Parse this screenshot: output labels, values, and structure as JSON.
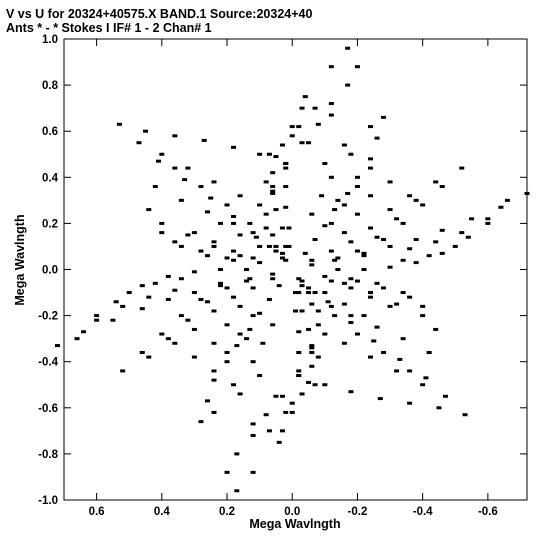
{
  "header": {
    "line1": "V vs U for 20324+40575.X BAND.1   Source:20324+40",
    "line2": "Ants * - *    Stokes I  IF# 1 - 2  Chan# 1"
  },
  "chart_data": {
    "type": "scatter",
    "xlabel": "Mega Wavlngth",
    "ylabel": "Mega Wavlngth",
    "xlim": [
      0.7,
      -0.72
    ],
    "ylim": [
      -1.0,
      1.0
    ],
    "x_axis_reversed": true,
    "grid": false,
    "x_ticks": [
      0.6,
      0.4,
      0.2,
      0.0,
      -0.2,
      -0.4,
      -0.6
    ],
    "x_tick_labels": [
      "0.6",
      "0.4",
      "0.2",
      "0.0",
      "-0.2",
      "-0.4",
      "-0.6"
    ],
    "y_ticks": [
      1.0,
      0.8,
      0.6,
      0.4,
      0.2,
      0.0,
      -0.2,
      -0.4,
      -0.6,
      -0.8,
      -1.0
    ],
    "y_tick_labels": [
      "1.0",
      "0.8",
      "0.6",
      "0.4",
      "0.2",
      "0.0",
      "-0.2",
      "-0.4",
      "-0.6",
      "-0.8",
      "-1.0"
    ],
    "point_color": "#000000",
    "series": [
      {
        "values": [
          [
            -0.17,
            0.96
          ],
          [
            -0.12,
            0.88
          ],
          [
            -0.04,
            0.75
          ],
          [
            0.0,
            0.62
          ],
          [
            0.05,
            0.49
          ],
          [
            0.08,
            0.38
          ],
          [
            0.1,
            0.28
          ],
          [
            0.08,
            0.18
          ],
          [
            0.05,
            0.1
          ],
          [
            0.02,
            0.04
          ],
          [
            0.17,
            -0.96
          ],
          [
            0.12,
            -0.88
          ],
          [
            0.04,
            -0.75
          ],
          [
            0.0,
            -0.62
          ],
          [
            -0.05,
            -0.49
          ],
          [
            -0.08,
            -0.38
          ],
          [
            -0.1,
            -0.28
          ],
          [
            -0.08,
            -0.18
          ],
          [
            -0.05,
            -0.1
          ],
          [
            -0.02,
            -0.04
          ],
          [
            -0.2,
            0.88
          ],
          [
            -0.17,
            0.8
          ],
          [
            -0.12,
            0.67
          ],
          [
            -0.05,
            0.55
          ],
          [
            0.02,
            0.44
          ],
          [
            0.06,
            0.33
          ],
          [
            0.08,
            0.24
          ],
          [
            0.06,
            0.15
          ],
          [
            0.03,
            0.07
          ],
          [
            0.2,
            -0.88
          ],
          [
            0.17,
            -0.8
          ],
          [
            0.12,
            -0.67
          ],
          [
            0.05,
            -0.55
          ],
          [
            -0.02,
            -0.44
          ],
          [
            -0.06,
            -0.33
          ],
          [
            -0.08,
            -0.24
          ],
          [
            -0.06,
            -0.15
          ],
          [
            -0.03,
            -0.07
          ],
          [
            -0.12,
            0.72
          ],
          [
            -0.08,
            0.63
          ],
          [
            -0.03,
            0.55
          ],
          [
            0.02,
            0.46
          ],
          [
            0.06,
            0.36
          ],
          [
            -0.07,
            0.7
          ],
          [
            -0.02,
            0.62
          ],
          [
            0.03,
            0.54
          ],
          [
            0.12,
            -0.72
          ],
          [
            0.08,
            -0.63
          ],
          [
            0.03,
            -0.55
          ],
          [
            -0.02,
            -0.46
          ],
          [
            -0.06,
            -0.36
          ],
          [
            0.07,
            -0.7
          ],
          [
            0.02,
            -0.62
          ],
          [
            -0.03,
            -0.54
          ],
          [
            0.07,
            0.5
          ],
          [
            0.06,
            0.42
          ],
          [
            0.06,
            0.34
          ],
          [
            0.05,
            0.26
          ],
          [
            0.03,
            0.18
          ],
          [
            0.02,
            0.1
          ],
          [
            -0.07,
            -0.5
          ],
          [
            -0.06,
            -0.42
          ],
          [
            -0.06,
            -0.34
          ],
          [
            -0.05,
            -0.26
          ],
          [
            -0.03,
            -0.18
          ],
          [
            -0.02,
            -0.1
          ],
          [
            -0.03,
            0.7
          ],
          [
            0.0,
            0.58
          ],
          [
            0.02,
            0.46
          ],
          [
            0.02,
            0.36
          ],
          [
            0.02,
            0.27
          ],
          [
            0.01,
            0.18
          ],
          [
            0.01,
            0.1
          ],
          [
            0.03,
            -0.7
          ],
          [
            0.0,
            -0.58
          ],
          [
            -0.02,
            -0.46
          ],
          [
            -0.02,
            -0.36
          ],
          [
            -0.02,
            -0.27
          ],
          [
            -0.01,
            -0.18
          ],
          [
            -0.01,
            -0.1
          ],
          [
            -0.28,
            0.66
          ],
          [
            -0.26,
            0.57
          ],
          [
            -0.24,
            0.48
          ],
          [
            -0.2,
            0.4
          ],
          [
            -0.17,
            0.33
          ],
          [
            -0.13,
            0.26
          ],
          [
            -0.1,
            0.19
          ],
          [
            -0.07,
            0.13
          ],
          [
            -0.04,
            0.07
          ],
          [
            0.28,
            -0.66
          ],
          [
            0.26,
            -0.57
          ],
          [
            0.24,
            -0.48
          ],
          [
            0.2,
            -0.4
          ],
          [
            0.17,
            -0.33
          ],
          [
            0.13,
            -0.26
          ],
          [
            0.1,
            -0.19
          ],
          [
            0.07,
            -0.13
          ],
          [
            0.04,
            -0.07
          ],
          [
            -0.24,
            0.62
          ],
          [
            -0.16,
            0.54
          ],
          [
            -0.1,
            0.46
          ],
          [
            -0.18,
            0.5
          ],
          [
            -0.12,
            0.4
          ],
          [
            -0.14,
            0.3
          ],
          [
            -0.09,
            0.32
          ],
          [
            -0.06,
            0.24
          ],
          [
            0.24,
            -0.62
          ],
          [
            0.16,
            -0.54
          ],
          [
            0.1,
            -0.46
          ],
          [
            0.18,
            -0.5
          ],
          [
            0.12,
            -0.4
          ],
          [
            0.14,
            -0.3
          ],
          [
            0.09,
            -0.32
          ],
          [
            0.06,
            -0.24
          ],
          [
            0.53,
            0.63
          ],
          [
            0.45,
            0.6
          ],
          [
            0.36,
            0.58
          ],
          [
            0.27,
            0.56
          ],
          [
            0.18,
            0.53
          ],
          [
            0.1,
            0.5
          ],
          [
            -0.53,
            -0.63
          ],
          [
            -0.45,
            -0.6
          ],
          [
            -0.36,
            -0.58
          ],
          [
            -0.27,
            -0.56
          ],
          [
            -0.18,
            -0.53
          ],
          [
            -0.1,
            -0.5
          ],
          [
            0.47,
            0.55
          ],
          [
            0.41,
            0.47
          ],
          [
            0.33,
            0.39
          ],
          [
            0.25,
            0.31
          ],
          [
            0.18,
            0.23
          ],
          [
            0.12,
            0.16
          ],
          [
            0.07,
            0.1
          ],
          [
            0.03,
            0.05
          ],
          [
            -0.47,
            -0.55
          ],
          [
            -0.41,
            -0.47
          ],
          [
            -0.33,
            -0.39
          ],
          [
            -0.25,
            -0.31
          ],
          [
            -0.18,
            -0.23
          ],
          [
            -0.12,
            -0.16
          ],
          [
            -0.07,
            -0.1
          ],
          [
            -0.03,
            -0.05
          ],
          [
            0.4,
            0.5
          ],
          [
            0.32,
            0.44
          ],
          [
            0.24,
            0.38
          ],
          [
            0.16,
            0.32
          ],
          [
            0.36,
            0.44
          ],
          [
            0.28,
            0.36
          ],
          [
            0.2,
            0.28
          ],
          [
            0.13,
            0.2
          ],
          [
            -0.4,
            -0.5
          ],
          [
            -0.32,
            -0.44
          ],
          [
            -0.24,
            -0.38
          ],
          [
            -0.16,
            -0.32
          ],
          [
            -0.36,
            -0.44
          ],
          [
            -0.28,
            -0.36
          ],
          [
            -0.2,
            -0.28
          ],
          [
            -0.13,
            -0.2
          ],
          [
            0.42,
            0.36
          ],
          [
            0.34,
            0.3
          ],
          [
            0.26,
            0.25
          ],
          [
            0.18,
            0.2
          ],
          [
            0.11,
            0.14
          ],
          [
            0.05,
            0.08
          ],
          [
            -0.42,
            -0.36
          ],
          [
            -0.34,
            -0.3
          ],
          [
            -0.26,
            -0.25
          ],
          [
            -0.18,
            -0.2
          ],
          [
            -0.11,
            -0.14
          ],
          [
            -0.05,
            -0.08
          ],
          [
            0.44,
            0.26
          ],
          [
            0.4,
            0.16
          ],
          [
            0.34,
            0.1
          ],
          [
            0.26,
            0.06
          ],
          [
            0.18,
            0.04
          ],
          [
            0.1,
            0.03
          ],
          [
            -0.44,
            -0.26
          ],
          [
            -0.4,
            -0.16
          ],
          [
            -0.34,
            -0.1
          ],
          [
            -0.26,
            -0.06
          ],
          [
            -0.18,
            -0.04
          ],
          [
            -0.1,
            -0.03
          ],
          [
            0.4,
            0.2
          ],
          [
            0.32,
            0.15
          ],
          [
            0.24,
            0.1
          ],
          [
            0.16,
            0.06
          ],
          [
            0.36,
            0.12
          ],
          [
            0.28,
            0.08
          ],
          [
            0.2,
            0.05
          ],
          [
            -0.4,
            -0.2
          ],
          [
            -0.32,
            -0.15
          ],
          [
            -0.24,
            -0.1
          ],
          [
            -0.16,
            -0.06
          ],
          [
            -0.36,
            -0.12
          ],
          [
            -0.28,
            -0.08
          ],
          [
            -0.2,
            -0.05
          ],
          [
            -0.72,
            0.33
          ],
          [
            -0.64,
            0.27
          ],
          [
            -0.55,
            0.22
          ],
          [
            -0.46,
            0.17
          ],
          [
            -0.38,
            0.13
          ],
          [
            -0.3,
            0.1
          ],
          [
            -0.22,
            0.07
          ],
          [
            -0.14,
            0.05
          ],
          [
            -0.06,
            0.02
          ],
          [
            0.72,
            -0.33
          ],
          [
            0.64,
            -0.27
          ],
          [
            0.55,
            -0.22
          ],
          [
            0.46,
            -0.17
          ],
          [
            0.38,
            -0.13
          ],
          [
            0.3,
            -0.1
          ],
          [
            0.22,
            -0.07
          ],
          [
            0.14,
            -0.05
          ],
          [
            0.06,
            -0.02
          ],
          [
            -0.66,
            0.3
          ],
          [
            -0.6,
            0.22
          ],
          [
            -0.54,
            0.14
          ],
          [
            -0.46,
            0.07
          ],
          [
            -0.38,
            0.03
          ],
          [
            -0.3,
            0.01
          ],
          [
            -0.22,
            0.0
          ],
          [
            -0.14,
            0.0
          ],
          [
            0.66,
            -0.3
          ],
          [
            0.6,
            -0.22
          ],
          [
            0.54,
            -0.14
          ],
          [
            0.46,
            -0.07
          ],
          [
            0.38,
            -0.03
          ],
          [
            0.3,
            -0.01
          ],
          [
            0.22,
            0.0
          ],
          [
            0.14,
            0.0
          ],
          [
            -0.6,
            0.2
          ],
          [
            -0.52,
            0.16
          ],
          [
            -0.44,
            0.12
          ],
          [
            -0.36,
            0.09
          ],
          [
            -0.5,
            0.1
          ],
          [
            -0.42,
            0.06
          ],
          [
            -0.34,
            0.04
          ],
          [
            0.6,
            -0.2
          ],
          [
            0.52,
            -0.16
          ],
          [
            0.44,
            -0.12
          ],
          [
            0.36,
            -0.09
          ],
          [
            0.5,
            -0.1
          ],
          [
            0.42,
            -0.06
          ],
          [
            0.34,
            -0.04
          ],
          [
            -0.44,
            0.38
          ],
          [
            -0.38,
            0.3
          ],
          [
            -0.32,
            0.22
          ],
          [
            -0.26,
            0.14
          ],
          [
            -0.2,
            0.08
          ],
          [
            -0.13,
            0.04
          ],
          [
            0.44,
            -0.38
          ],
          [
            0.38,
            -0.3
          ],
          [
            0.32,
            -0.22
          ],
          [
            0.26,
            -0.14
          ],
          [
            0.2,
            -0.08
          ],
          [
            0.13,
            -0.04
          ],
          [
            -0.52,
            0.44
          ],
          [
            -0.46,
            0.36
          ],
          [
            -0.4,
            0.28
          ],
          [
            -0.34,
            0.2
          ],
          [
            -0.28,
            0.13
          ],
          [
            -0.22,
            0.06
          ],
          [
            0.52,
            -0.44
          ],
          [
            0.46,
            -0.36
          ],
          [
            0.4,
            -0.28
          ],
          [
            0.34,
            -0.2
          ],
          [
            0.28,
            -0.13
          ],
          [
            0.22,
            -0.06
          ],
          [
            -0.36,
            0.32
          ],
          [
            -0.3,
            0.26
          ],
          [
            -0.24,
            0.18
          ],
          [
            -0.18,
            0.12
          ],
          [
            -0.12,
            0.08
          ],
          [
            -0.06,
            0.04
          ],
          [
            0.36,
            -0.32
          ],
          [
            0.3,
            -0.26
          ],
          [
            0.24,
            -0.18
          ],
          [
            0.18,
            -0.12
          ],
          [
            0.12,
            -0.08
          ],
          [
            0.06,
            -0.04
          ],
          [
            0.3,
            0.16
          ],
          [
            0.24,
            0.12
          ],
          [
            0.18,
            0.08
          ],
          [
            0.12,
            0.05
          ],
          [
            0.22,
            0.2
          ],
          [
            0.16,
            0.15
          ],
          [
            0.1,
            0.1
          ],
          [
            -0.3,
            -0.16
          ],
          [
            -0.24,
            -0.12
          ],
          [
            -0.18,
            -0.08
          ],
          [
            -0.12,
            -0.05
          ],
          [
            -0.22,
            -0.2
          ],
          [
            -0.16,
            -0.15
          ],
          [
            -0.1,
            -0.1
          ],
          [
            -0.3,
            0.38
          ],
          [
            -0.24,
            0.32
          ],
          [
            -0.2,
            0.24
          ],
          [
            -0.16,
            0.16
          ],
          [
            -0.24,
            0.44
          ],
          [
            -0.2,
            0.36
          ],
          [
            -0.16,
            0.28
          ],
          [
            -0.12,
            0.2
          ],
          [
            0.3,
            -0.38
          ],
          [
            0.24,
            -0.32
          ],
          [
            0.2,
            -0.24
          ],
          [
            0.16,
            -0.16
          ],
          [
            0.24,
            -0.44
          ],
          [
            0.2,
            -0.36
          ],
          [
            0.16,
            -0.28
          ],
          [
            0.12,
            -0.2
          ]
        ]
      }
    ]
  }
}
